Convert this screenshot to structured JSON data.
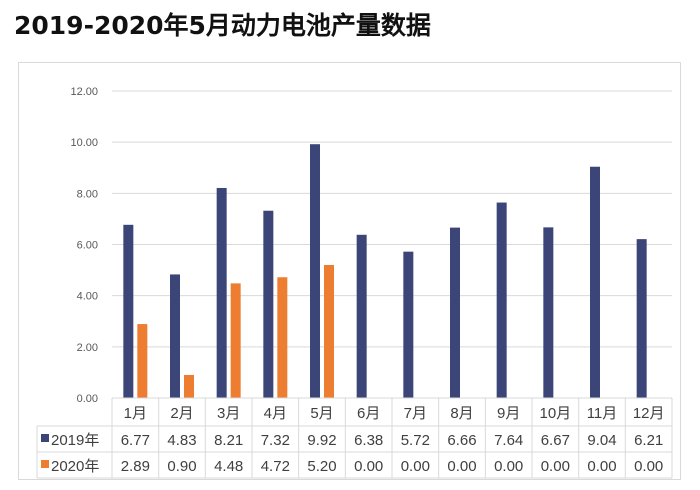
{
  "chart_data": {
    "type": "bar",
    "title": "2019-2020年5月动力电池产量数据",
    "categories": [
      "1月",
      "2月",
      "3月",
      "4月",
      "5月",
      "6月",
      "7月",
      "8月",
      "9月",
      "10月",
      "11月",
      "12月"
    ],
    "series": [
      {
        "name": "2019年",
        "color": "#3c4577",
        "values": [
          6.77,
          4.83,
          8.21,
          7.32,
          9.92,
          6.38,
          5.72,
          6.66,
          7.64,
          6.67,
          9.04,
          6.21
        ]
      },
      {
        "name": "2020年",
        "color": "#ed7d31",
        "values": [
          2.89,
          0.9,
          4.48,
          4.72,
          5.2,
          0.0,
          0.0,
          0.0,
          0.0,
          0.0,
          0.0,
          0.0
        ]
      }
    ],
    "yticks": [
      "0.00",
      "2.00",
      "4.00",
      "6.00",
      "8.00",
      "10.00",
      "12.00"
    ],
    "ylim": [
      0,
      12
    ],
    "grid": true,
    "legend": "data-table"
  }
}
